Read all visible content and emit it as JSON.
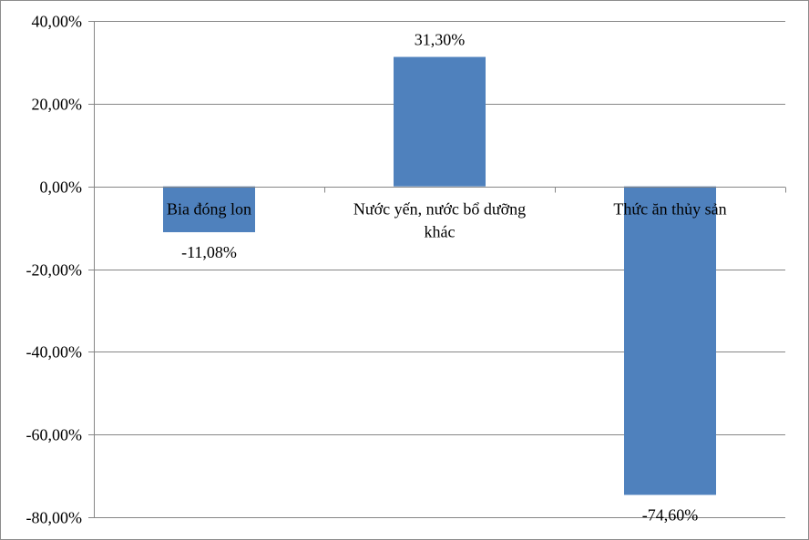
{
  "chart_data": {
    "type": "bar",
    "categories": [
      "Bia đóng lon",
      "Nước yến, nước bổ dưỡng khác",
      "Thức ăn thủy sản"
    ],
    "category_label_lines": [
      [
        "Bia đóng lon"
      ],
      [
        "Nước yến, nước bổ dưỡng",
        "khác"
      ],
      [
        "Thức ăn thủy sản"
      ]
    ],
    "values": [
      -11.08,
      31.3,
      -74.6
    ],
    "data_labels": [
      "-11,08%",
      "31,30%",
      "-74,60%"
    ],
    "ylim": [
      -80,
      40
    ],
    "y_ticks": [
      40,
      20,
      0,
      -20,
      -40,
      -60,
      -80
    ],
    "y_tick_labels": [
      "40,00%",
      "20,00%",
      "0,00%",
      "-20,00%",
      "-40,00%",
      "-60,00%",
      "-80,00%"
    ],
    "title": "",
    "xlabel": "",
    "ylabel": "",
    "grid": true,
    "legend": "none",
    "colors": {
      "bar": "#4f81bd",
      "grid": "#868686",
      "axis": "#868686"
    }
  }
}
